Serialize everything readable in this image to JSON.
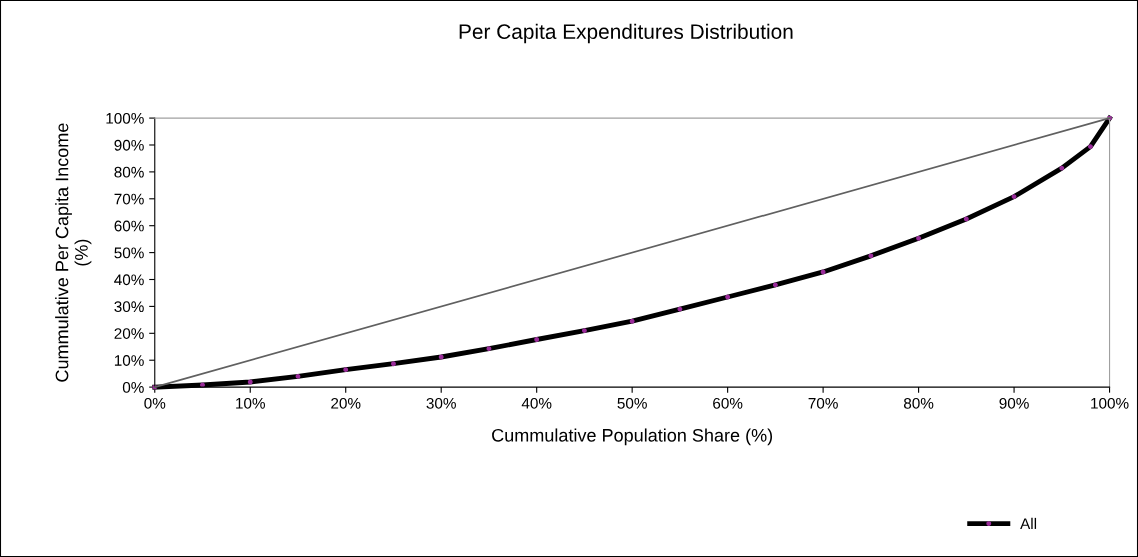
{
  "chart_data": {
    "type": "line",
    "title": "Per Capita Expenditures Distribution",
    "xlabel": "Cummulative Population Share (%)",
    "ylabel": "Cummulative Per Capita Income\n(%)",
    "x": [
      0,
      5,
      10,
      15,
      20,
      25,
      30,
      35,
      40,
      45,
      50,
      55,
      60,
      65,
      70,
      75,
      80,
      85,
      90,
      95,
      98,
      100
    ],
    "series": [
      {
        "color": "#606060",
        "x": [
          0,
          100
        ],
        "values": [
          0,
          100
        ],
        "marker": "none"
      },
      {
        "name": "All",
        "color": "#000000",
        "values": [
          0,
          0.8,
          1.9,
          4,
          6.5,
          8.7,
          11.2,
          14.3,
          17.7,
          21,
          24.5,
          29,
          33.5,
          38,
          42.8,
          48.8,
          55.3,
          62.5,
          70.8,
          81.4,
          89.4,
          100
        ],
        "marker": "circle"
      }
    ],
    "xlim": [
      0,
      100
    ],
    "ylim": [
      0,
      100
    ],
    "xticks": [
      {
        "value": 0,
        "label": "0%"
      },
      {
        "value": 10,
        "label": "10%"
      },
      {
        "value": 20,
        "label": "20%"
      },
      {
        "value": 30,
        "label": "30%"
      },
      {
        "value": 40,
        "label": "40%"
      },
      {
        "value": 50,
        "label": "50%"
      },
      {
        "value": 60,
        "label": "60%"
      },
      {
        "value": 70,
        "label": "70%"
      },
      {
        "value": 80,
        "label": "80%"
      },
      {
        "value": 90,
        "label": "90%"
      },
      {
        "value": 100,
        "label": "100%"
      }
    ],
    "yticks": [
      {
        "value": 0,
        "label": "0%"
      },
      {
        "value": 10,
        "label": "10%"
      },
      {
        "value": 20,
        "label": "20%"
      },
      {
        "value": 30,
        "label": "30%"
      },
      {
        "value": 40,
        "label": "40%"
      },
      {
        "value": 50,
        "label": "50%"
      },
      {
        "value": 60,
        "label": "60%"
      },
      {
        "value": 70,
        "label": "70%"
      },
      {
        "value": 80,
        "label": "80%"
      },
      {
        "value": 90,
        "label": "90%"
      },
      {
        "value": 100,
        "label": "100%"
      }
    ],
    "grid": false,
    "legend": "bottom right"
  }
}
